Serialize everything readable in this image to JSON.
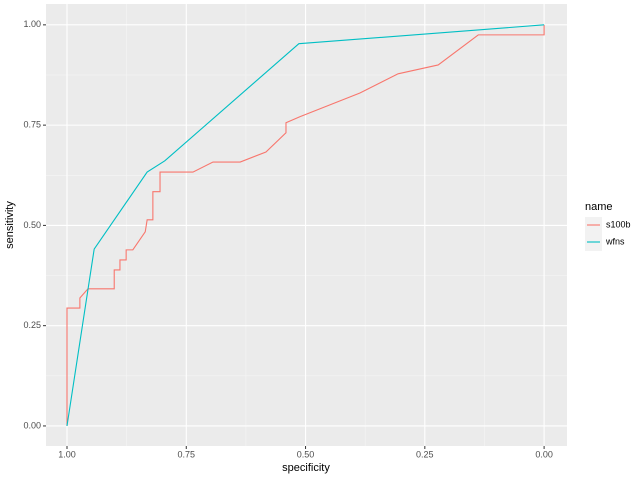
{
  "chart_data": {
    "type": "line",
    "x_label": "specificity",
    "y_label": "sensitivity",
    "legend_title": "name",
    "xlim": [
      1.044,
      -0.048
    ],
    "ylim": [
      -0.05,
      1.052
    ],
    "xticks": [
      {
        "value": 1,
        "label": "1.00"
      },
      {
        "value": 0.75,
        "label": "0.75"
      },
      {
        "value": 0.5,
        "label": "0.50"
      },
      {
        "value": 0.25,
        "label": "0.25"
      },
      {
        "value": 0,
        "label": "0.00"
      }
    ],
    "yticks": [
      {
        "value": 0,
        "label": "0.00"
      },
      {
        "value": 0.25,
        "label": "0.25"
      },
      {
        "value": 0.5,
        "label": "0.50"
      },
      {
        "value": 0.75,
        "label": "0.75"
      },
      {
        "value": 1,
        "label": "1.00"
      }
    ],
    "grid": true,
    "legend_position": "right",
    "series": [
      {
        "name": "s100b",
        "color": "#f8766d",
        "x": [
          1.0,
          1.0,
          0.973,
          0.973,
          0.956,
          0.901,
          0.901,
          0.889,
          0.889,
          0.876,
          0.876,
          0.862,
          0.836,
          0.832,
          0.82,
          0.82,
          0.805,
          0.805,
          0.736,
          0.694,
          0.637,
          0.583,
          0.541,
          0.541,
          0.512,
          0.386,
          0.306,
          0.222,
          0.138,
          0.0,
          0.0
        ],
        "values": [
          0.0,
          0.294,
          0.294,
          0.319,
          0.342,
          0.342,
          0.389,
          0.389,
          0.414,
          0.414,
          0.439,
          0.439,
          0.484,
          0.514,
          0.514,
          0.584,
          0.584,
          0.633,
          0.633,
          0.658,
          0.658,
          0.683,
          0.731,
          0.756,
          0.771,
          0.83,
          0.878,
          0.9,
          0.975,
          0.975,
          1.0
        ]
      },
      {
        "name": "wfns",
        "color": "#00bfc4",
        "x": [
          1.0,
          0.943,
          0.832,
          0.795,
          0.514,
          0.0
        ],
        "values": [
          0.0,
          0.441,
          0.633,
          0.661,
          0.953,
          1.0
        ]
      }
    ]
  }
}
